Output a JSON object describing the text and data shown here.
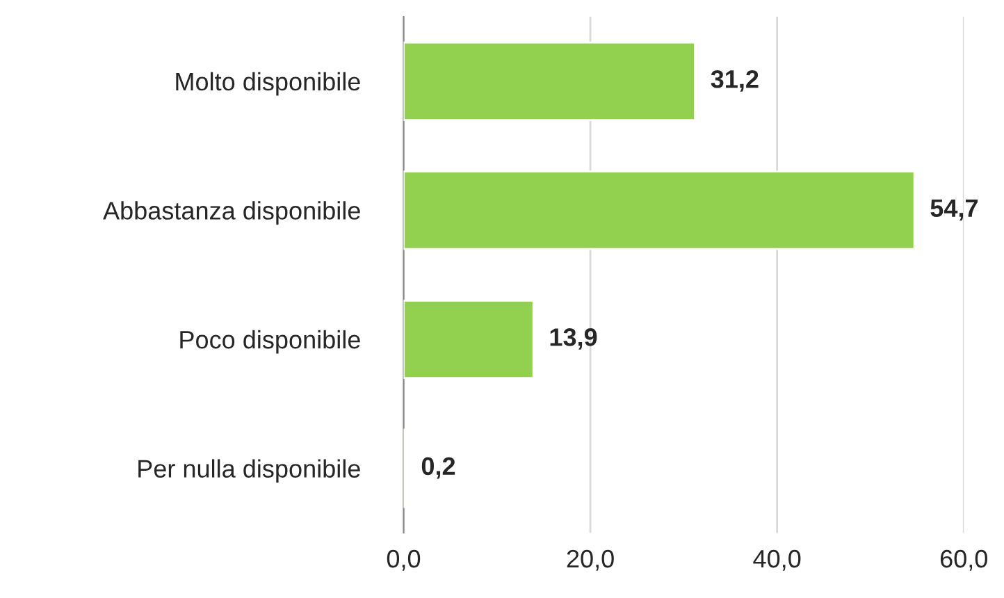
{
  "chart_data": {
    "type": "bar",
    "orientation": "horizontal",
    "categories": [
      "Molto disponibile",
      "Abbastanza disponibile",
      "Poco disponibile",
      "Per nulla disponibile"
    ],
    "values": [
      31.2,
      54.7,
      13.9,
      0.2
    ],
    "value_labels": [
      "31,2",
      "54,7",
      "13,9",
      "0,2"
    ],
    "color": "#92d050",
    "xlim": [
      0,
      60
    ],
    "xticks": [
      {
        "value": 0,
        "label": "0,0"
      },
      {
        "value": 20,
        "label": "20,0"
      },
      {
        "value": 40,
        "label": "40,0"
      },
      {
        "value": 60,
        "label": "60,0"
      }
    ],
    "grid": "x"
  }
}
